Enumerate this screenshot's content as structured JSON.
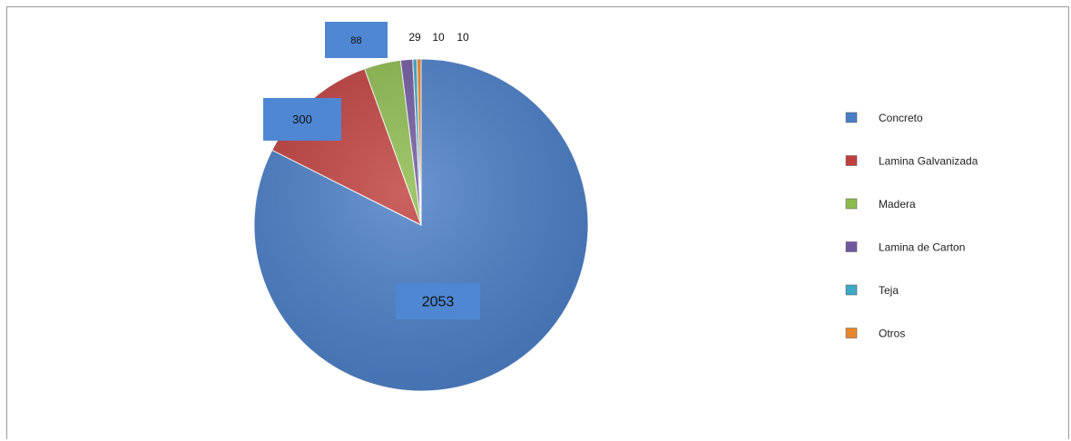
{
  "chart_data": {
    "type": "pie",
    "categories": [
      "Concreto",
      "Lamina Galvanizada",
      "Madera",
      "Lamina de Carton",
      "Teja",
      "Otros"
    ],
    "values": [
      2053,
      300,
      88,
      29,
      10,
      10
    ],
    "colors": [
      "#4a7ec7",
      "#c0403d",
      "#8dbb4e",
      "#7058a0",
      "#3fa8c4",
      "#e8862e"
    ],
    "data_labels": [
      "2053",
      "300",
      "88",
      "29",
      "10",
      "10"
    ],
    "legend_labels": [
      "Concreto",
      "Lamina Galvanizada",
      "Madera",
      "Lamina de Carton",
      "Teja",
      "Otros"
    ],
    "legend_position": "right",
    "title": ""
  }
}
